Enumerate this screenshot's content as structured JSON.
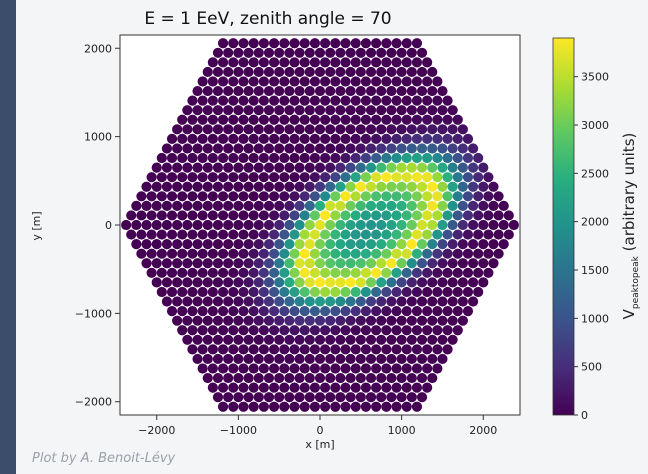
{
  "credit": "Plot by A. Benoit-Lévy",
  "colors": {
    "background": "#3c4d6b",
    "panel": "#f4f5f7",
    "colormap": "viridis"
  },
  "chart_data": {
    "type": "heatmap",
    "subtype": "hexagonal detector array (scatter of hexagon-packed antennas)",
    "title": "E = 1 EeV, zenith angle = 70",
    "xlabel": "x [m]",
    "ylabel": "y [m]",
    "colorbar_label": "V_peaktopeak (arbitrary units)",
    "colorbar_label_display": "V",
    "colorbar_label_sub": "peaktopeak",
    "colorbar_label_rest": " (arbitrary units)",
    "xlim": [
      -2450,
      2450
    ],
    "ylim": [
      -2150,
      2150
    ],
    "xticks": [
      -2000,
      -1000,
      0,
      1000,
      2000
    ],
    "xtick_labels": [
      "−2000",
      "−1000",
      "0",
      "1000",
      "2000"
    ],
    "yticks": [
      -2000,
      -1000,
      0,
      1000,
      2000
    ],
    "ytick_labels": [
      "−2000",
      "−1000",
      "0",
      "1000",
      "2000"
    ],
    "colorbar_ticks": [
      0,
      500,
      1000,
      1500,
      2000,
      2500,
      3000,
      3500
    ],
    "colorbar_range": [
      0,
      3900
    ],
    "array": {
      "shape": "hexagon",
      "spacing_m": 125,
      "rings": 19
    },
    "footprint": {
      "center_x": 600,
      "center_y": -50,
      "angle_deg": 33,
      "ring_semi_major": 900,
      "ring_semi_minor": 460,
      "peak_value": 3900,
      "center_value": 2000,
      "falloff_scale": 0.42
    },
    "grid": false
  }
}
